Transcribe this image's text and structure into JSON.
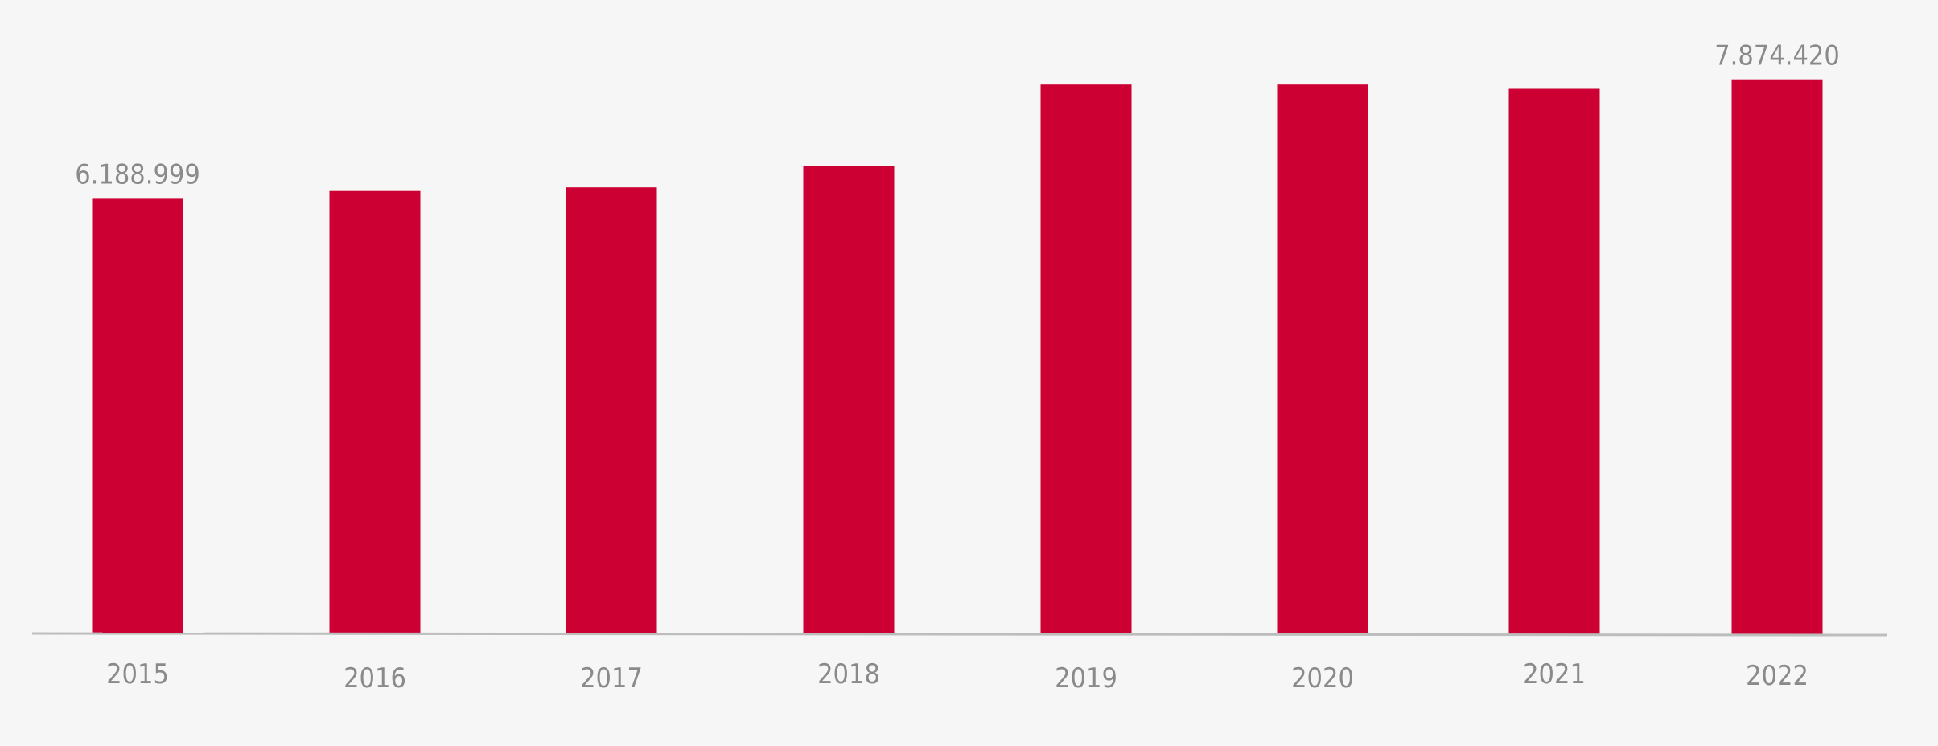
{
  "chart_data": {
    "type": "bar",
    "categories": [
      "2015",
      "2016",
      "2017",
      "2018",
      "2019",
      "2020",
      "2021",
      "2022"
    ],
    "values": [
      6188999,
      6300000,
      6340000,
      6640000,
      7800000,
      7800000,
      7740000,
      7874420
    ],
    "data_labels": [
      {
        "index": 0,
        "text": "6.188.999"
      },
      {
        "index": 7,
        "text": "7.874.420"
      }
    ],
    "title": "",
    "xlabel": "",
    "ylabel": "",
    "ylim": [
      0,
      9000000
    ],
    "grid": false,
    "bar_color": "#cc0033",
    "axis_color": "#bdbdbd",
    "background": "#f6f6f6"
  }
}
